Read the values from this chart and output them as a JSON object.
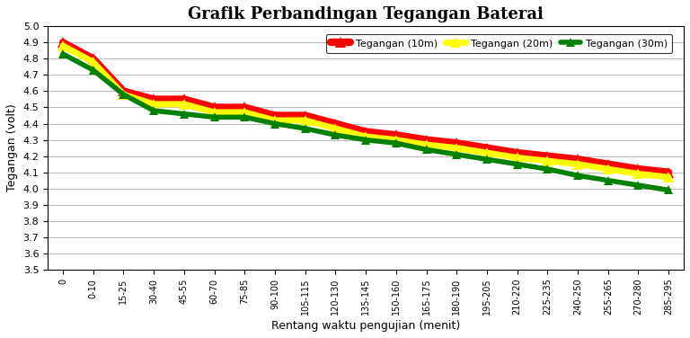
{
  "title": "Grafik Perbandingan Tegangan Baterai",
  "xlabel": "Rentang waktu pengujian (menit)",
  "ylabel": "Tegangan (volt)",
  "x_labels": [
    "0",
    "0-10",
    "15-25",
    "30-40",
    "45-55",
    "60-70",
    "75-85",
    "90-100",
    "105-115",
    "120-130",
    "135-145",
    "150-160",
    "165-175",
    "180-190",
    "195-205",
    "210-220",
    "225-235",
    "240-250",
    "255-265",
    "270-280",
    "285-295"
  ],
  "tegangan_10m": [
    4.9,
    4.8,
    4.6,
    4.55,
    4.55,
    4.5,
    4.5,
    4.45,
    4.45,
    4.4,
    4.35,
    4.33,
    4.3,
    4.28,
    4.25,
    4.22,
    4.2,
    4.18,
    4.15,
    4.12,
    4.1
  ],
  "tegangan_20m": [
    4.88,
    4.78,
    4.58,
    4.52,
    4.52,
    4.47,
    4.47,
    4.42,
    4.42,
    4.37,
    4.32,
    4.3,
    4.27,
    4.25,
    4.22,
    4.19,
    4.17,
    4.15,
    4.12,
    4.09,
    4.07
  ],
  "tegangan_30m": [
    4.83,
    4.73,
    4.58,
    4.48,
    4.46,
    4.44,
    4.44,
    4.4,
    4.37,
    4.33,
    4.3,
    4.28,
    4.24,
    4.21,
    4.18,
    4.15,
    4.12,
    4.08,
    4.05,
    4.02,
    3.99
  ],
  "color_10m": "#ff0000",
  "color_20m": "#ffff00",
  "color_30m": "#008000",
  "ylim_min": 3.5,
  "ylim_max": 5.0,
  "yticks": [
    3.5,
    3.6,
    3.7,
    3.8,
    3.9,
    4.0,
    4.1,
    4.2,
    4.3,
    4.4,
    4.5,
    4.6,
    4.7,
    4.8,
    4.9,
    5.0
  ],
  "legend_10m": "Tegangan (10m)",
  "legend_20m": "Tegangan (20m)",
  "legend_30m": "Tegangan (30m)",
  "background_color": "#ffffff",
  "grid_color": "#b0b0b0",
  "title_fontsize": 13,
  "axis_label_fontsize": 9,
  "tick_fontsize": 7,
  "legend_fontsize": 8
}
